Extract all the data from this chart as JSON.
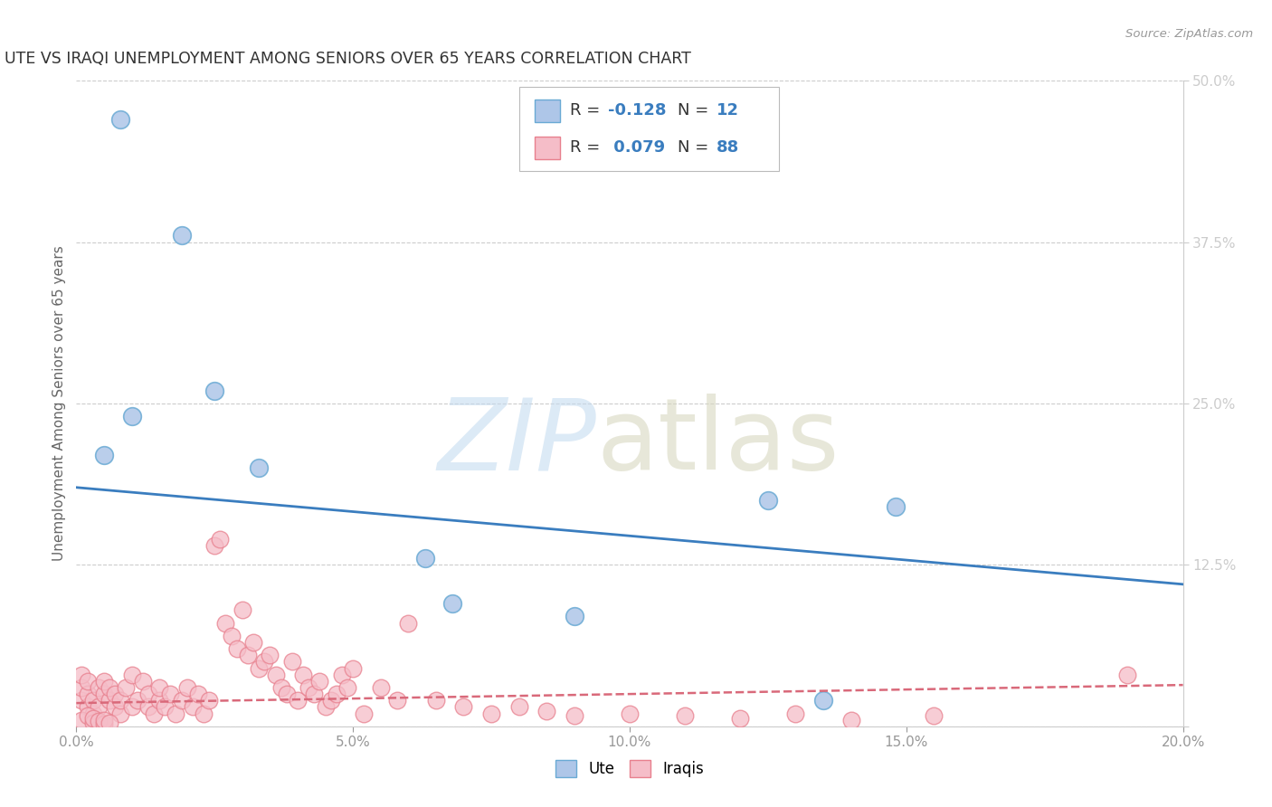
{
  "title": "UTE VS IRAQI UNEMPLOYMENT AMONG SENIORS OVER 65 YEARS CORRELATION CHART",
  "source": "Source: ZipAtlas.com",
  "ylabel": "Unemployment Among Seniors over 65 years",
  "xlim": [
    0.0,
    0.2
  ],
  "ylim": [
    0.0,
    0.5
  ],
  "xticks": [
    0.0,
    0.05,
    0.1,
    0.15,
    0.2
  ],
  "xtick_labels": [
    "0.0%",
    "5.0%",
    "10.0%",
    "15.0%",
    "20.0%"
  ],
  "yticks_right": [
    0.0,
    0.125,
    0.25,
    0.375,
    0.5
  ],
  "ytick_labels_right": [
    "",
    "12.5%",
    "25.0%",
    "37.5%",
    "50.0%"
  ],
  "ute_R": -0.128,
  "ute_N": 12,
  "iraqi_R": 0.079,
  "iraqi_N": 88,
  "ute_color": "#aec6e8",
  "ute_edge_color": "#6aaad4",
  "iraqi_color": "#f5bdc8",
  "iraqi_edge_color": "#e8808e",
  "trend_ute_color": "#3a7dbf",
  "trend_iraqi_color": "#d9697a",
  "background_color": "#ffffff",
  "grid_color": "#cccccc",
  "title_color": "#333333",
  "ute_trend_start": 0.185,
  "ute_trend_end": 0.11,
  "iraqi_trend_start": 0.018,
  "iraqi_trend_end": 0.032,
  "ute_x": [
    0.008,
    0.019,
    0.025,
    0.01,
    0.005,
    0.033,
    0.063,
    0.068,
    0.125,
    0.135,
    0.148,
    0.09
  ],
  "ute_y": [
    0.47,
    0.38,
    0.26,
    0.24,
    0.21,
    0.2,
    0.13,
    0.095,
    0.175,
    0.02,
    0.17,
    0.085
  ],
  "iraqi_x": [
    0.001,
    0.001,
    0.001,
    0.002,
    0.002,
    0.002,
    0.003,
    0.003,
    0.004,
    0.004,
    0.005,
    0.005,
    0.006,
    0.006,
    0.007,
    0.007,
    0.008,
    0.008,
    0.009,
    0.01,
    0.01,
    0.011,
    0.012,
    0.013,
    0.013,
    0.014,
    0.015,
    0.015,
    0.016,
    0.017,
    0.018,
    0.019,
    0.02,
    0.021,
    0.022,
    0.023,
    0.024,
    0.025,
    0.026,
    0.027,
    0.028,
    0.029,
    0.03,
    0.031,
    0.032,
    0.033,
    0.034,
    0.035,
    0.036,
    0.037,
    0.038,
    0.039,
    0.04,
    0.041,
    0.042,
    0.043,
    0.044,
    0.045,
    0.046,
    0.047,
    0.048,
    0.049,
    0.05,
    0.052,
    0.055,
    0.058,
    0.06,
    0.065,
    0.07,
    0.075,
    0.08,
    0.085,
    0.09,
    0.1,
    0.11,
    0.12,
    0.13,
    0.14,
    0.155,
    0.19,
    0.001,
    0.002,
    0.003,
    0.003,
    0.004,
    0.005,
    0.005,
    0.006
  ],
  "iraqi_y": [
    0.02,
    0.03,
    0.04,
    0.015,
    0.025,
    0.035,
    0.01,
    0.02,
    0.03,
    0.015,
    0.025,
    0.035,
    0.02,
    0.03,
    0.015,
    0.025,
    0.01,
    0.02,
    0.03,
    0.015,
    0.04,
    0.02,
    0.035,
    0.015,
    0.025,
    0.01,
    0.02,
    0.03,
    0.015,
    0.025,
    0.01,
    0.02,
    0.03,
    0.015,
    0.025,
    0.01,
    0.02,
    0.14,
    0.145,
    0.08,
    0.07,
    0.06,
    0.09,
    0.055,
    0.065,
    0.045,
    0.05,
    0.055,
    0.04,
    0.03,
    0.025,
    0.05,
    0.02,
    0.04,
    0.03,
    0.025,
    0.035,
    0.015,
    0.02,
    0.025,
    0.04,
    0.03,
    0.045,
    0.01,
    0.03,
    0.02,
    0.08,
    0.02,
    0.015,
    0.01,
    0.015,
    0.012,
    0.008,
    0.01,
    0.008,
    0.006,
    0.01,
    0.005,
    0.008,
    0.04,
    0.005,
    0.008,
    0.003,
    0.006,
    0.004,
    0.002,
    0.005,
    0.003
  ]
}
